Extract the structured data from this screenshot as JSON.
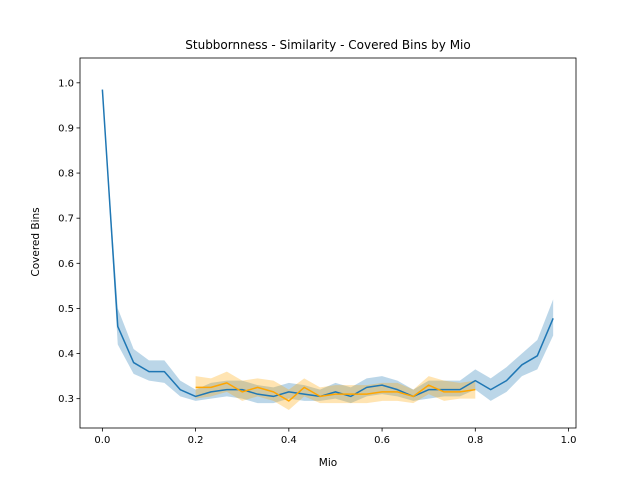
{
  "chart_data": {
    "type": "line",
    "title": "Stubbornness - Similarity - Covered Bins by Mio",
    "xlabel": "Mio",
    "ylabel": "Covered Bins",
    "xlim": [
      -0.048,
      1.016
    ],
    "ylim": [
      0.235,
      1.055
    ],
    "x_ticks": [
      0.0,
      0.2,
      0.4,
      0.6,
      0.8,
      1.0
    ],
    "x_tick_labels": [
      "0.0",
      "0.2",
      "0.4",
      "0.6",
      "0.8",
      "1.0"
    ],
    "y_ticks": [
      0.3,
      0.4,
      0.5,
      0.6,
      0.7,
      0.8,
      0.9,
      1.0
    ],
    "y_tick_labels": [
      "0.3",
      "0.4",
      "0.5",
      "0.6",
      "0.7",
      "0.8",
      "0.9",
      "1.0"
    ],
    "grid": false,
    "legend": "none",
    "series": [
      {
        "color": "#1f77b4",
        "band_color": "#1f77b4",
        "x": [
          0.0,
          0.033,
          0.067,
          0.1,
          0.133,
          0.167,
          0.2,
          0.233,
          0.267,
          0.3,
          0.333,
          0.367,
          0.4,
          0.433,
          0.467,
          0.5,
          0.533,
          0.567,
          0.6,
          0.633,
          0.667,
          0.7,
          0.733,
          0.767,
          0.8,
          0.833,
          0.867,
          0.9,
          0.933,
          0.967
        ],
        "y": [
          0.985,
          0.46,
          0.38,
          0.36,
          0.36,
          0.32,
          0.305,
          0.315,
          0.32,
          0.32,
          0.31,
          0.305,
          0.315,
          0.31,
          0.305,
          0.315,
          0.305,
          0.325,
          0.33,
          0.32,
          0.305,
          0.32,
          0.32,
          0.32,
          0.34,
          0.32,
          0.34,
          0.375,
          0.395,
          0.478
        ],
        "lower": [
          0.985,
          0.42,
          0.355,
          0.34,
          0.335,
          0.305,
          0.295,
          0.3,
          0.305,
          0.3,
          0.29,
          0.29,
          0.3,
          0.295,
          0.295,
          0.3,
          0.29,
          0.305,
          0.31,
          0.305,
          0.295,
          0.3,
          0.305,
          0.305,
          0.32,
          0.295,
          0.315,
          0.35,
          0.365,
          0.44
        ],
        "upper": [
          0.985,
          0.5,
          0.41,
          0.385,
          0.385,
          0.34,
          0.32,
          0.335,
          0.34,
          0.34,
          0.33,
          0.325,
          0.335,
          0.33,
          0.32,
          0.335,
          0.325,
          0.345,
          0.35,
          0.34,
          0.32,
          0.34,
          0.34,
          0.34,
          0.365,
          0.345,
          0.37,
          0.4,
          0.43,
          0.52
        ]
      },
      {
        "color": "#ffa500",
        "band_color": "#ffa500",
        "x": [
          0.2,
          0.233,
          0.267,
          0.3,
          0.333,
          0.367,
          0.4,
          0.433,
          0.467,
          0.5,
          0.533,
          0.567,
          0.6,
          0.633,
          0.667,
          0.7,
          0.733,
          0.767,
          0.8
        ],
        "y": [
          0.325,
          0.325,
          0.335,
          0.315,
          0.325,
          0.315,
          0.295,
          0.325,
          0.305,
          0.31,
          0.31,
          0.31,
          0.315,
          0.315,
          0.305,
          0.33,
          0.315,
          0.315,
          0.32
        ],
        "lower": [
          0.3,
          0.305,
          0.315,
          0.295,
          0.305,
          0.295,
          0.275,
          0.305,
          0.29,
          0.29,
          0.29,
          0.29,
          0.295,
          0.295,
          0.29,
          0.31,
          0.295,
          0.3,
          0.3
        ],
        "upper": [
          0.35,
          0.345,
          0.36,
          0.34,
          0.345,
          0.34,
          0.32,
          0.345,
          0.325,
          0.33,
          0.33,
          0.33,
          0.335,
          0.335,
          0.32,
          0.35,
          0.34,
          0.335,
          0.34
        ]
      }
    ]
  }
}
